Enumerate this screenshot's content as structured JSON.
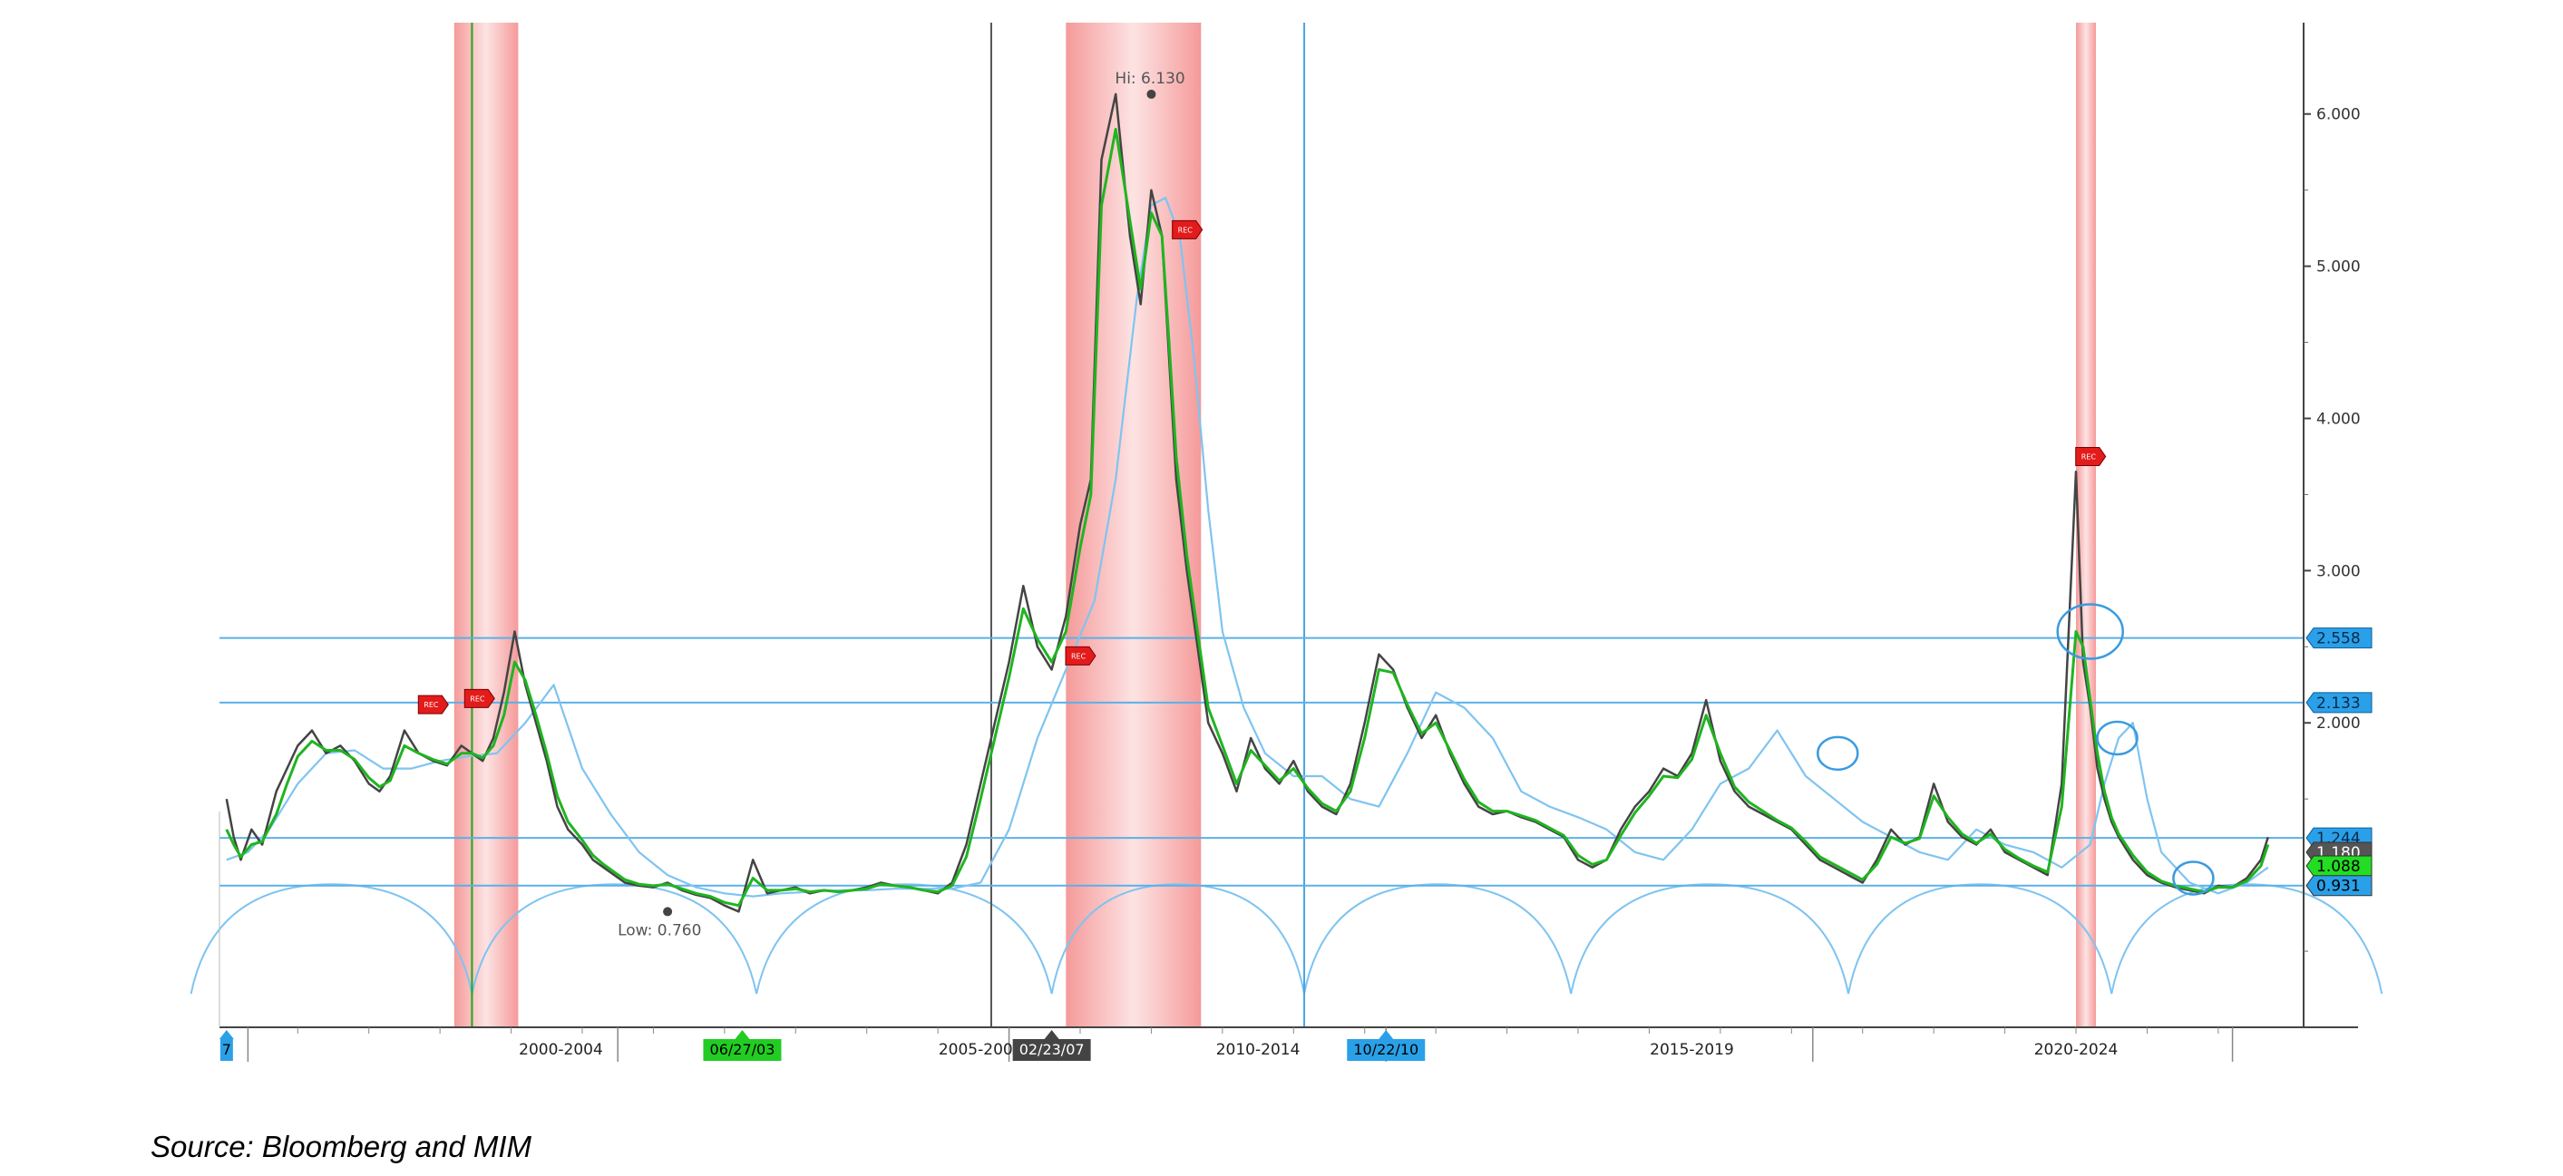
{
  "chart_data": {
    "type": "line",
    "title": "",
    "xlabel": "",
    "ylabel": "",
    "ylim": [
      0.0,
      6.6
    ],
    "xlim": [
      1997.9,
      2027.2
    ],
    "y_ticks": [
      2.0,
      3.0,
      4.0,
      5.0,
      6.0
    ],
    "y_tick_labels": [
      "2.000",
      "3.000",
      "4.000",
      "5.000",
      "6.000"
    ],
    "x_band_labels": [
      {
        "label": "2000-2004",
        "x": 2002.7
      },
      {
        "label": "2005-2009",
        "x": 2008.6
      },
      {
        "label": "2010-2014",
        "x": 2012.5
      },
      {
        "label": "2015-2019",
        "x": 2018.6
      },
      {
        "label": "2020-2024",
        "x": 2024.0
      }
    ],
    "x_band_dividers": [
      1998.3,
      2003.5,
      2009.0,
      2014.3,
      2020.3,
      2026.2
    ],
    "grid": false,
    "recession_bands": [
      [
        2001.2,
        2002.1
      ],
      [
        2009.8,
        2011.7
      ],
      [
        2024.0,
        2024.28
      ]
    ],
    "vertical_markers": [
      {
        "x": 2001.45,
        "color": "#1aa81a"
      },
      {
        "x": 2008.75,
        "color": "#555555"
      },
      {
        "x": 2013.15,
        "color": "#4aa3e0"
      }
    ],
    "date_flags": [
      {
        "label": "06/27/03",
        "x": 2005.25,
        "color": "#22cc22",
        "text_color": "#000000"
      },
      {
        "label": "02/23/07",
        "x": 2009.6,
        "color": "#444444",
        "text_color": "#ffffff"
      },
      {
        "label": "10/22/10",
        "x": 2014.3,
        "color": "#2aa0e8",
        "text_color": "#000000"
      },
      {
        "label": "7",
        "x": 1998.0,
        "color": "#2aa0e8",
        "text_color": "#000000"
      }
    ],
    "horizontal_levels": [
      {
        "label": "2.558",
        "value": 2.558
      },
      {
        "label": "2.133",
        "value": 2.133
      },
      {
        "label": "1.244",
        "value": 1.244
      }
    ],
    "current_value_tags": [
      {
        "label": "1.180",
        "value": 1.15,
        "color": "#555555",
        "text_color": "#ffffff"
      },
      {
        "label": "1.088",
        "value": 1.06,
        "color": "#22dd22",
        "text_color": "#000000"
      },
      {
        "label": "0.931",
        "value": 0.931,
        "color": "#2aa0e8",
        "text_color": "#000000"
      }
    ],
    "annotations": [
      {
        "text": "Hi: 6.130",
        "x": 2011.0,
        "y": 6.13
      },
      {
        "text": "Low: 0.760",
        "x": 2004.2,
        "y": 0.76
      }
    ],
    "rec_markers": [
      {
        "text": "REC",
        "x": 2000.9,
        "y": 2.12
      },
      {
        "text": "REC",
        "x": 2001.55,
        "y": 2.16
      },
      {
        "text": "REC",
        "x": 2010.0,
        "y": 2.44
      },
      {
        "text": "REC",
        "x": 2011.5,
        "y": 5.24
      },
      {
        "text": "REC",
        "x": 2024.2,
        "y": 3.75
      }
    ],
    "highlight_circles": [
      {
        "x": 2024.2,
        "y": 2.6
      },
      {
        "x": 2024.58,
        "y": 1.9
      },
      {
        "x": 2020.65,
        "y": 1.8
      },
      {
        "x": 2025.65,
        "y": 0.98
      }
    ],
    "series": [
      {
        "color": "#444444",
        "x": [
          1998.0,
          1998.1,
          1998.2,
          1998.35,
          1998.5,
          1998.7,
          1998.85,
          1999.0,
          1999.2,
          1999.4,
          1999.6,
          1999.8,
          2000.0,
          2000.15,
          2000.3,
          2000.5,
          2000.7,
          2000.9,
          2001.1,
          2001.3,
          2001.45,
          2001.6,
          2001.75,
          2001.9,
          2002.05,
          2002.2,
          2002.35,
          2002.5,
          2002.65,
          2002.8,
          2003.0,
          2003.15,
          2003.3,
          2003.45,
          2003.6,
          2003.8,
          2004.0,
          2004.2,
          2004.4,
          2004.6,
          2004.8,
          2005.0,
          2005.2,
          2005.4,
          2005.6,
          2005.8,
          2006.0,
          2006.2,
          2006.4,
          2006.6,
          2006.8,
          2007.0,
          2007.2,
          2007.4,
          2007.6,
          2007.8,
          2008.0,
          2008.2,
          2008.4,
          2008.6,
          2008.8,
          2009.0,
          2009.2,
          2009.4,
          2009.6,
          2009.8,
          2010.0,
          2010.15,
          2010.3,
          2010.5,
          2010.7,
          2010.85,
          2011.0,
          2011.15,
          2011.25,
          2011.35,
          2011.5,
          2011.65,
          2011.8,
          2012.0,
          2012.2,
          2012.4,
          2012.6,
          2012.8,
          2013.0,
          2013.2,
          2013.4,
          2013.6,
          2013.8,
          2014.0,
          2014.2,
          2014.4,
          2014.6,
          2014.8,
          2015.0,
          2015.2,
          2015.4,
          2015.6,
          2015.8,
          2016.0,
          2016.2,
          2016.4,
          2016.6,
          2016.8,
          2017.0,
          2017.2,
          2017.4,
          2017.6,
          2017.8,
          2018.0,
          2018.2,
          2018.4,
          2018.6,
          2018.8,
          2019.0,
          2019.2,
          2019.4,
          2019.6,
          2019.8,
          2020.0,
          2020.2,
          2020.4,
          2020.6,
          2020.8,
          2021.0,
          2021.2,
          2021.4,
          2021.6,
          2021.8,
          2022.0,
          2022.2,
          2022.4,
          2022.6,
          2022.8,
          2023.0,
          2023.2,
          2023.4,
          2023.6,
          2023.8,
          2024.0,
          2024.1,
          2024.2,
          2024.3,
          2024.4,
          2024.5,
          2024.6,
          2024.8,
          2025.0,
          2025.2,
          2025.4,
          2025.6,
          2025.8,
          2026.0,
          2026.2,
          2026.4,
          2026.6,
          2026.7
        ],
        "values": [
          1.5,
          1.25,
          1.1,
          1.3,
          1.2,
          1.55,
          1.7,
          1.85,
          1.95,
          1.8,
          1.85,
          1.75,
          1.6,
          1.55,
          1.65,
          1.95,
          1.8,
          1.75,
          1.72,
          1.85,
          1.8,
          1.75,
          1.9,
          2.2,
          2.6,
          2.25,
          2.0,
          1.75,
          1.45,
          1.3,
          1.2,
          1.1,
          1.05,
          1.0,
          0.95,
          0.93,
          0.92,
          0.95,
          0.9,
          0.87,
          0.85,
          0.8,
          0.76,
          1.1,
          0.88,
          0.9,
          0.92,
          0.88,
          0.9,
          0.89,
          0.9,
          0.92,
          0.95,
          0.93,
          0.92,
          0.9,
          0.88,
          0.95,
          1.2,
          1.6,
          2.0,
          2.4,
          2.9,
          2.5,
          2.35,
          2.7,
          3.3,
          3.6,
          5.7,
          6.13,
          5.2,
          4.75,
          5.5,
          5.2,
          4.4,
          3.6,
          3.0,
          2.5,
          2.0,
          1.8,
          1.55,
          1.9,
          1.7,
          1.6,
          1.75,
          1.55,
          1.45,
          1.4,
          1.6,
          2.0,
          2.45,
          2.35,
          2.1,
          1.9,
          2.05,
          1.8,
          1.6,
          1.45,
          1.4,
          1.42,
          1.38,
          1.35,
          1.3,
          1.25,
          1.1,
          1.05,
          1.1,
          1.3,
          1.45,
          1.55,
          1.7,
          1.65,
          1.8,
          2.15,
          1.75,
          1.55,
          1.45,
          1.4,
          1.35,
          1.3,
          1.2,
          1.1,
          1.05,
          1.0,
          0.95,
          1.1,
          1.3,
          1.2,
          1.25,
          1.6,
          1.35,
          1.25,
          1.2,
          1.3,
          1.15,
          1.1,
          1.05,
          1.0,
          1.6,
          3.65,
          2.4,
          2.1,
          1.7,
          1.5,
          1.35,
          1.25,
          1.1,
          1.0,
          0.95,
          0.92,
          0.9,
          0.88,
          0.93,
          0.92,
          0.98,
          1.1,
          1.25
        ]
      },
      {
        "color": "#1fb51f",
        "x": [
          1998.0,
          1998.1,
          1998.2,
          1998.35,
          1998.5,
          1998.7,
          1998.85,
          1999.0,
          1999.2,
          1999.4,
          1999.6,
          1999.8,
          2000.0,
          2000.15,
          2000.3,
          2000.5,
          2000.7,
          2000.9,
          2001.1,
          2001.3,
          2001.45,
          2001.6,
          2001.75,
          2001.9,
          2002.05,
          2002.2,
          2002.35,
          2002.5,
          2002.65,
          2002.8,
          2003.0,
          2003.15,
          2003.3,
          2003.45,
          2003.6,
          2003.8,
          2004.0,
          2004.2,
          2004.4,
          2004.6,
          2004.8,
          2005.0,
          2005.2,
          2005.4,
          2005.6,
          2005.8,
          2006.0,
          2006.2,
          2006.4,
          2006.6,
          2006.8,
          2007.0,
          2007.2,
          2007.4,
          2007.6,
          2007.8,
          2008.0,
          2008.2,
          2008.4,
          2008.6,
          2008.8,
          2009.0,
          2009.2,
          2009.4,
          2009.6,
          2009.8,
          2010.0,
          2010.15,
          2010.3,
          2010.5,
          2010.7,
          2010.85,
          2011.0,
          2011.15,
          2011.25,
          2011.35,
          2011.5,
          2011.65,
          2011.8,
          2012.0,
          2012.2,
          2012.4,
          2012.6,
          2012.8,
          2013.0,
          2013.2,
          2013.4,
          2013.6,
          2013.8,
          2014.0,
          2014.2,
          2014.4,
          2014.6,
          2014.8,
          2015.0,
          2015.2,
          2015.4,
          2015.6,
          2015.8,
          2016.0,
          2016.2,
          2016.4,
          2016.6,
          2016.8,
          2017.0,
          2017.2,
          2017.4,
          2017.6,
          2017.8,
          2018.0,
          2018.2,
          2018.4,
          2018.6,
          2018.8,
          2019.0,
          2019.2,
          2019.4,
          2019.6,
          2019.8,
          2020.0,
          2020.2,
          2020.4,
          2020.6,
          2020.8,
          2021.0,
          2021.2,
          2021.4,
          2021.6,
          2021.8,
          2022.0,
          2022.2,
          2022.4,
          2022.6,
          2022.8,
          2023.0,
          2023.2,
          2023.4,
          2023.6,
          2023.8,
          2024.0,
          2024.1,
          2024.2,
          2024.3,
          2024.4,
          2024.5,
          2024.6,
          2024.8,
          2025.0,
          2025.2,
          2025.4,
          2025.6,
          2025.8,
          2026.0,
          2026.2,
          2026.4,
          2026.6,
          2026.7
        ],
        "values": [
          1.3,
          1.2,
          1.12,
          1.2,
          1.22,
          1.4,
          1.6,
          1.78,
          1.88,
          1.82,
          1.82,
          1.76,
          1.64,
          1.58,
          1.62,
          1.85,
          1.8,
          1.76,
          1.73,
          1.8,
          1.8,
          1.77,
          1.85,
          2.05,
          2.4,
          2.28,
          2.05,
          1.8,
          1.52,
          1.35,
          1.23,
          1.13,
          1.07,
          1.02,
          0.97,
          0.94,
          0.93,
          0.94,
          0.91,
          0.88,
          0.86,
          0.82,
          0.8,
          0.98,
          0.9,
          0.9,
          0.91,
          0.89,
          0.9,
          0.89,
          0.9,
          0.91,
          0.94,
          0.93,
          0.92,
          0.9,
          0.89,
          0.93,
          1.12,
          1.5,
          1.9,
          2.3,
          2.75,
          2.55,
          2.4,
          2.6,
          3.15,
          3.5,
          5.4,
          5.9,
          5.3,
          4.85,
          5.35,
          5.2,
          4.5,
          3.75,
          3.1,
          2.6,
          2.1,
          1.85,
          1.6,
          1.82,
          1.72,
          1.62,
          1.7,
          1.57,
          1.47,
          1.42,
          1.55,
          1.9,
          2.35,
          2.33,
          2.12,
          1.93,
          2.0,
          1.82,
          1.63,
          1.48,
          1.42,
          1.42,
          1.39,
          1.36,
          1.31,
          1.26,
          1.13,
          1.07,
          1.1,
          1.26,
          1.41,
          1.52,
          1.65,
          1.64,
          1.76,
          2.05,
          1.8,
          1.58,
          1.48,
          1.42,
          1.36,
          1.31,
          1.22,
          1.12,
          1.07,
          1.02,
          0.97,
          1.07,
          1.25,
          1.21,
          1.24,
          1.52,
          1.38,
          1.27,
          1.21,
          1.27,
          1.17,
          1.11,
          1.06,
          1.02,
          1.45,
          2.6,
          2.5,
          2.15,
          1.8,
          1.55,
          1.38,
          1.27,
          1.13,
          1.02,
          0.96,
          0.93,
          0.91,
          0.89,
          0.92,
          0.92,
          0.96,
          1.06,
          1.2
        ]
      },
      {
        "color": "#7fc4f0",
        "x": [
          1998.0,
          1998.3,
          1998.6,
          1999.0,
          1999.4,
          1999.8,
          2000.2,
          2000.6,
          2001.0,
          2001.4,
          2001.8,
          2002.2,
          2002.6,
          2003.0,
          2003.4,
          2003.8,
          2004.2,
          2004.6,
          2005.0,
          2005.4,
          2005.8,
          2006.2,
          2006.6,
          2007.0,
          2007.4,
          2007.8,
          2008.2,
          2008.6,
          2009.0,
          2009.4,
          2009.8,
          2010.2,
          2010.5,
          2010.8,
          2011.0,
          2011.2,
          2011.4,
          2011.6,
          2011.8,
          2012.0,
          2012.3,
          2012.6,
          2013.0,
          2013.4,
          2013.8,
          2014.2,
          2014.6,
          2015.0,
          2015.4,
          2015.8,
          2016.2,
          2016.6,
          2017.0,
          2017.4,
          2017.8,
          2018.2,
          2018.6,
          2019.0,
          2019.4,
          2019.8,
          2020.2,
          2020.6,
          2021.0,
          2021.4,
          2021.8,
          2022.2,
          2022.6,
          2023.0,
          2023.4,
          2023.8,
          2024.2,
          2024.4,
          2024.6,
          2024.8,
          2025.0,
          2025.2,
          2025.6,
          2026.0,
          2026.4,
          2026.7
        ],
        "values": [
          1.1,
          1.15,
          1.3,
          1.6,
          1.8,
          1.82,
          1.7,
          1.7,
          1.75,
          1.78,
          1.8,
          2.0,
          2.25,
          1.7,
          1.4,
          1.15,
          1.0,
          0.92,
          0.88,
          0.86,
          0.88,
          0.89,
          0.9,
          0.9,
          0.91,
          0.91,
          0.91,
          0.95,
          1.3,
          1.9,
          2.35,
          2.8,
          3.6,
          4.8,
          5.4,
          5.45,
          5.2,
          4.4,
          3.4,
          2.6,
          2.1,
          1.8,
          1.65,
          1.65,
          1.5,
          1.45,
          1.8,
          2.2,
          2.1,
          1.9,
          1.55,
          1.45,
          1.38,
          1.3,
          1.15,
          1.1,
          1.3,
          1.6,
          1.7,
          1.95,
          1.65,
          1.5,
          1.35,
          1.25,
          1.15,
          1.1,
          1.3,
          1.2,
          1.15,
          1.05,
          1.2,
          1.6,
          1.9,
          2.0,
          1.5,
          1.15,
          0.95,
          0.88,
          0.95,
          1.05
        ]
      }
    ],
    "cycle_arcs_x": [
      1997.5,
      2001.45,
      2005.45,
      2009.6,
      2013.15,
      2016.9,
      2020.8,
      2024.5,
      2028.3
    ]
  },
  "source_note": "Source: Bloomberg and MIM"
}
